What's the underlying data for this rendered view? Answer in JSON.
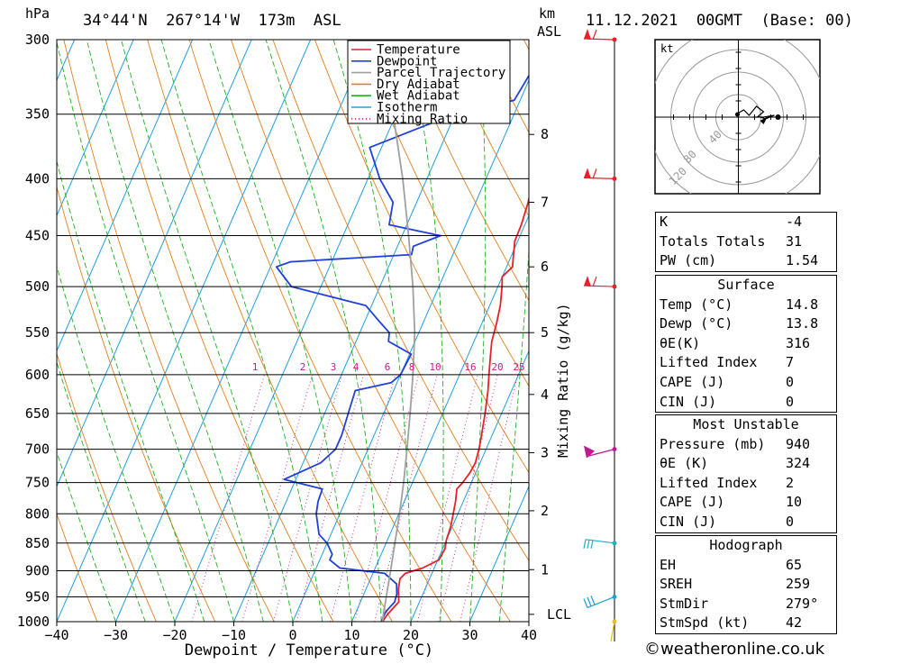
{
  "header": {
    "location": "34°44'N  267°14'W  173m  ASL",
    "datetime": "11.12.2021  00GMT  (Base: 00)",
    "hpa_unit": "hPa",
    "km_label": "km",
    "asl_label": "ASL"
  },
  "chart_data": {
    "type": "line",
    "title": "34°44'N  267°14'W  173m  ASL",
    "xlabel": "Dewpoint / Temperature (°C)",
    "ylabel": "hPa",
    "right_axis_label": "Mixing Ratio (g/kg)",
    "xlim": [
      -40,
      40
    ],
    "ylim": [
      1000,
      300
    ],
    "x_ticks": [
      -40,
      -30,
      -20,
      -10,
      0,
      10,
      20,
      30,
      40
    ],
    "pressure_levels": [
      300,
      350,
      400,
      450,
      500,
      550,
      600,
      650,
      700,
      750,
      800,
      850,
      900,
      950,
      1000
    ],
    "km_ticks": [
      {
        "label": "8",
        "p": 365
      },
      {
        "label": "7",
        "p": 420
      },
      {
        "label": "6",
        "p": 480
      },
      {
        "label": "5",
        "p": 550
      },
      {
        "label": "4",
        "p": 625
      },
      {
        "label": "3",
        "p": 705
      },
      {
        "label": "2",
        "p": 795
      },
      {
        "label": "1",
        "p": 898
      },
      {
        "label": "LCL",
        "p": 985
      }
    ],
    "mixing_ratio_labels": [
      "1",
      "2",
      "3",
      "4",
      "6",
      "8",
      "10",
      "16",
      "20",
      "25"
    ],
    "legend": [
      {
        "name": "Temperature",
        "color": "#e8202a"
      },
      {
        "name": "Dewpoint",
        "color": "#2040d8"
      },
      {
        "name": "Parcel Trajectory",
        "color": "#a0a0a0"
      },
      {
        "name": "Dry Adiabat",
        "color": "#e08020"
      },
      {
        "name": "Wet Adiabat",
        "color": "#20b020"
      },
      {
        "name": "Isotherm",
        "color": "#20a0e0"
      },
      {
        "name": "Mixing Ratio",
        "color": "#d01890"
      }
    ],
    "series": [
      {
        "name": "Temperature",
        "color": "#e8202a",
        "points": [
          [
            1000,
            15.2
          ],
          [
            985,
            15.5
          ],
          [
            960,
            16.5
          ],
          [
            935,
            15.5
          ],
          [
            915,
            15
          ],
          [
            905,
            15.5
          ],
          [
            895,
            18
          ],
          [
            880,
            20.2
          ],
          [
            860,
            20.4
          ],
          [
            845,
            20
          ],
          [
            820,
            19.7
          ],
          [
            800,
            19.2
          ],
          [
            780,
            18.7
          ],
          [
            760,
            18
          ],
          [
            750,
            18.5
          ],
          [
            735,
            19
          ],
          [
            720,
            19.2
          ],
          [
            700,
            18.8
          ],
          [
            680,
            18.2
          ],
          [
            650,
            17.2
          ],
          [
            620,
            16
          ],
          [
            600,
            15
          ],
          [
            580,
            14
          ],
          [
            560,
            13
          ],
          [
            540,
            12.5
          ],
          [
            520,
            11.8
          ],
          [
            500,
            10.7
          ],
          [
            490,
            10
          ],
          [
            480,
            11
          ],
          [
            470,
            10.4
          ],
          [
            455,
            9.5
          ],
          [
            440,
            9.4
          ],
          [
            420,
            8.9
          ],
          [
            400,
            8
          ],
          [
            380,
            6.7
          ],
          [
            360,
            5.5
          ],
          [
            350,
            4
          ],
          [
            330,
            3
          ],
          [
            300,
            0.6
          ]
        ]
      },
      {
        "name": "Dewpoint",
        "color": "#2040d8",
        "points": [
          [
            1000,
            15
          ],
          [
            980,
            15
          ],
          [
            960,
            15.8
          ],
          [
            945,
            15.6
          ],
          [
            925,
            14.8
          ],
          [
            905,
            12
          ],
          [
            895,
            4
          ],
          [
            880,
            1.7
          ],
          [
            870,
            1.7
          ],
          [
            850,
            0
          ],
          [
            835,
            -2
          ],
          [
            800,
            -4
          ],
          [
            780,
            -4.6
          ],
          [
            760,
            -4.8
          ],
          [
            745,
            -12
          ],
          [
            735,
            -10
          ],
          [
            720,
            -7
          ],
          [
            700,
            -5.5
          ],
          [
            680,
            -5.5
          ],
          [
            650,
            -6
          ],
          [
            620,
            -6.5
          ],
          [
            610,
            -1
          ],
          [
            600,
            0
          ],
          [
            575,
            0.3
          ],
          [
            560,
            -4.5
          ],
          [
            550,
            -5
          ],
          [
            540,
            -7
          ],
          [
            520,
            -11
          ],
          [
            500,
            -25
          ],
          [
            480,
            -29
          ],
          [
            475,
            -27
          ],
          [
            468,
            -7
          ],
          [
            460,
            -7.3
          ],
          [
            450,
            -3.5
          ],
          [
            440,
            -13
          ],
          [
            420,
            -14
          ],
          [
            400,
            -18
          ],
          [
            375,
            -22
          ],
          [
            360,
            -15
          ],
          [
            350,
            -10
          ],
          [
            340,
            -1
          ],
          [
            320,
            -0.2
          ],
          [
            300,
            -1
          ]
        ]
      },
      {
        "name": "Parcel Trajectory",
        "color": "#a0a0a0",
        "points": [
          [
            1000,
            15.2
          ],
          [
            985,
            14.8
          ],
          [
            950,
            14
          ],
          [
            900,
            12.8
          ],
          [
            850,
            11.5
          ],
          [
            800,
            10.1
          ],
          [
            750,
            8.5
          ],
          [
            700,
            6.6
          ],
          [
            650,
            4.5
          ],
          [
            600,
            2.1
          ],
          [
            550,
            -0.7
          ],
          [
            500,
            -4.4
          ],
          [
            450,
            -8.9
          ],
          [
            400,
            -14.1
          ],
          [
            350,
            -20.5
          ],
          [
            300,
            -28.6
          ]
        ]
      }
    ],
    "wind_barbs": [
      {
        "p": 300,
        "color": "#e8202a"
      },
      {
        "p": 400,
        "color": "#e8202a"
      },
      {
        "p": 500,
        "color": "#e8202a"
      },
      {
        "p": 700,
        "color": "#c01890"
      },
      {
        "p": 850,
        "color": "#20b0c0"
      },
      {
        "p": 950,
        "color": "#20a0d0"
      },
      {
        "p": 1000,
        "color": "#e0c020"
      }
    ],
    "hodograph": {
      "unit": "kt",
      "ring_labels": [
        "40",
        "80",
        "120"
      ],
      "ring_values": [
        20,
        40,
        60,
        80
      ]
    }
  },
  "indices": {
    "k": {
      "label": "K",
      "value": "-4"
    },
    "tt": {
      "label": "Totals Totals",
      "value": "31"
    },
    "pw": {
      "label": "PW (cm)",
      "value": "1.54"
    }
  },
  "surface": {
    "title": "Surface",
    "temp": {
      "label": "Temp (°C)",
      "value": "14.8"
    },
    "dewp": {
      "label": "Dewp (°C)",
      "value": "13.8"
    },
    "theta": {
      "label": "θE(K)",
      "value": "316"
    },
    "li": {
      "label": "Lifted Index",
      "value": "7"
    },
    "cape": {
      "label": "CAPE (J)",
      "value": "0"
    },
    "cin": {
      "label": "CIN (J)",
      "value": "0"
    }
  },
  "most_unstable": {
    "title": "Most Unstable",
    "pressure": {
      "label": "Pressure (mb)",
      "value": "940"
    },
    "theta": {
      "label": "θE (K)",
      "value": "324"
    },
    "li": {
      "label": "Lifted Index",
      "value": "2"
    },
    "cape": {
      "label": "CAPE (J)",
      "value": "10"
    },
    "cin": {
      "label": "CIN (J)",
      "value": "0"
    }
  },
  "hodograph_table": {
    "title": "Hodograph",
    "eh": {
      "label": "EH",
      "value": "65"
    },
    "sreh": {
      "label": "SREH",
      "value": "259"
    },
    "stmdir": {
      "label": "StmDir",
      "value": "279°"
    },
    "stmspd": {
      "label": "StmSpd (kt)",
      "value": "42"
    }
  },
  "footer": {
    "text": "©weatheronline.co.uk"
  }
}
